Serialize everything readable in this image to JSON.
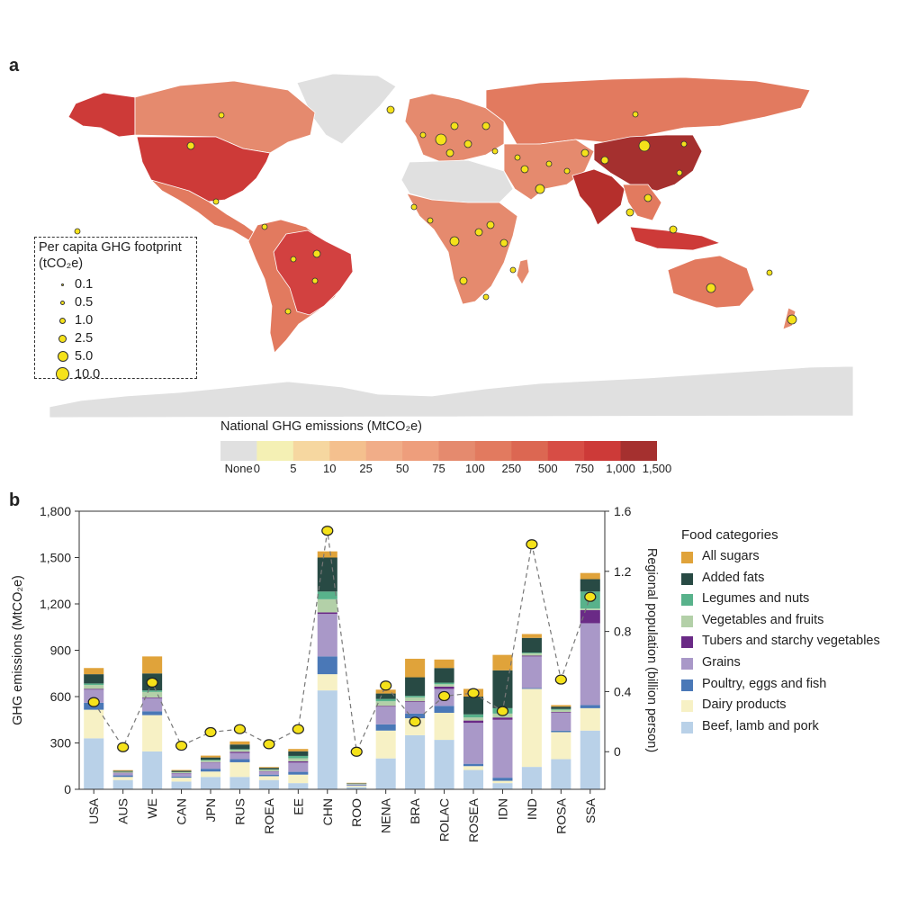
{
  "panels": {
    "a": "a",
    "b": "b"
  },
  "map_legend": {
    "title_line1": "Per capita GHG footprint",
    "title_line2": "(tCO₂e)",
    "sizes": [
      "0.1",
      "0.5",
      "1.0",
      "2.5",
      "5.0",
      "10.0"
    ]
  },
  "color_scale": {
    "title": "National GHG emissions (MtCO₂e)",
    "labels": [
      "None",
      "0",
      "5",
      "10",
      "25",
      "50",
      "75",
      "100",
      "250",
      "500",
      "750",
      "1,000",
      "1,500"
    ],
    "colors": [
      "#e0e0e0",
      "#f4f0b4",
      "#f6d7a0",
      "#f4c08e",
      "#f1ad88",
      "#ee9e7c",
      "#e58a6e",
      "#e27a5f",
      "#dc6752",
      "#d74d45",
      "#cd3a38",
      "#a5302f"
    ]
  },
  "map_colors": {
    "ocean": "#ffffff",
    "none": "#e0e0e0",
    "russia": "#e27a5f",
    "usa": "#cd3a38",
    "china": "#a5302f",
    "india": "#b52f2c",
    "brazil": "#d24140",
    "canada": "#e58a6e",
    "australia": "#e27a5f",
    "africa": "#e58a6e",
    "europe": "#e58a6e",
    "south_america": "#e27a5f",
    "bubble": "#f5e21a"
  },
  "chart_data": {
    "type": "bar",
    "stacked": true,
    "categories": [
      "USA",
      "AUS",
      "WE",
      "CAN",
      "JPN",
      "RUS",
      "ROEA",
      "EE",
      "CHN",
      "ROO",
      "NENA",
      "BRA",
      "ROLAC",
      "ROSEA",
      "IDN",
      "IND",
      "ROSA",
      "SSA"
    ],
    "ylabel": "GHG emissions (MtCO₂e)",
    "ylim": [
      0,
      1800
    ],
    "yticks": [
      "0",
      "300",
      "600",
      "900",
      "1,200",
      "1,500",
      "1,800"
    ],
    "y2label": "Regional population (billion person)",
    "y2ticks": [
      "0",
      "0.4",
      "0.8",
      "1.2",
      "1.6"
    ],
    "legend_title": "Food categories",
    "series": [
      {
        "name": "Beef, lamb and pork",
        "color": "#b9d1e8",
        "values": [
          330,
          60,
          245,
          50,
          80,
          80,
          60,
          40,
          640,
          15,
          200,
          350,
          320,
          125,
          40,
          145,
          195,
          380
        ]
      },
      {
        "name": "Dairy products",
        "color": "#f7f1c5",
        "values": [
          185,
          20,
          235,
          25,
          35,
          95,
          25,
          55,
          105,
          8,
          180,
          110,
          175,
          25,
          15,
          505,
          175,
          145
        ]
      },
      {
        "name": "Poultry, eggs and fish",
        "color": "#4a78b7",
        "values": [
          45,
          10,
          25,
          8,
          18,
          20,
          10,
          18,
          115,
          3,
          40,
          30,
          45,
          15,
          20,
          5,
          10,
          20
        ]
      },
      {
        "name": "Grains",
        "color": "#a998c8",
        "values": [
          85,
          15,
          85,
          20,
          40,
          40,
          20,
          60,
          275,
          4,
          115,
          75,
          110,
          265,
          375,
          205,
          115,
          530
        ]
      },
      {
        "name": "Tubers and starchy vegetables",
        "color": "#6a2a86",
        "values": [
          5,
          2,
          5,
          2,
          3,
          8,
          3,
          8,
          10,
          1,
          5,
          5,
          15,
          15,
          15,
          5,
          5,
          85
        ]
      },
      {
        "name": "Vegetables and fruits",
        "color": "#b3d0a8",
        "values": [
          25,
          5,
          35,
          5,
          10,
          12,
          8,
          20,
          85,
          3,
          30,
          25,
          15,
          20,
          25,
          15,
          15,
          10
        ]
      },
      {
        "name": "Legumes and nuts",
        "color": "#58b28b",
        "values": [
          10,
          2,
          10,
          2,
          5,
          5,
          3,
          15,
          50,
          2,
          15,
          10,
          10,
          20,
          35,
          5,
          5,
          110
        ]
      },
      {
        "name": "Added fats",
        "color": "#284a44",
        "values": [
          60,
          5,
          110,
          8,
          15,
          30,
          10,
          30,
          220,
          3,
          35,
          120,
          95,
          115,
          245,
          95,
          15,
          80
        ]
      },
      {
        "name": "All sugars",
        "color": "#e0a33a",
        "values": [
          40,
          5,
          110,
          5,
          12,
          20,
          5,
          15,
          40,
          3,
          25,
          120,
          55,
          50,
          100,
          25,
          10,
          40
        ]
      }
    ],
    "population": {
      "name": "Regional population",
      "ylim": [
        -0.25,
        1.6
      ],
      "values": [
        0.33,
        0.03,
        0.46,
        0.04,
        0.13,
        0.15,
        0.05,
        0.15,
        1.47,
        0.0,
        0.44,
        0.2,
        0.37,
        0.39,
        0.27,
        1.38,
        0.48,
        1.03
      ]
    }
  }
}
